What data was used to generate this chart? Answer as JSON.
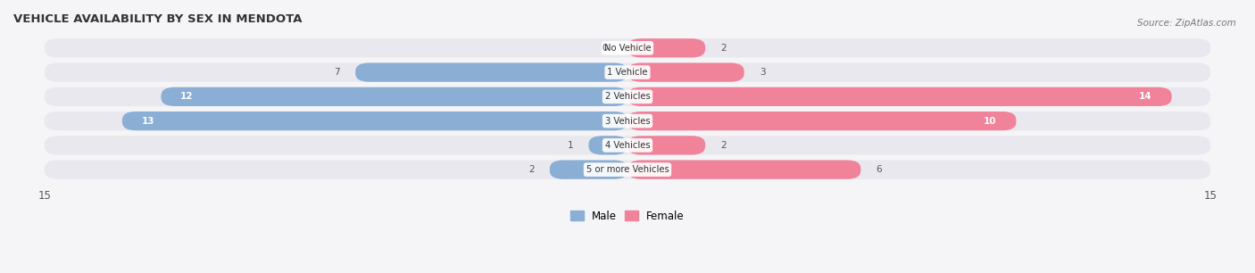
{
  "title": "VEHICLE AVAILABILITY BY SEX IN MENDOTA",
  "source": "Source: ZipAtlas.com",
  "categories": [
    "No Vehicle",
    "1 Vehicle",
    "2 Vehicles",
    "3 Vehicles",
    "4 Vehicles",
    "5 or more Vehicles"
  ],
  "male_values": [
    0,
    7,
    12,
    13,
    1,
    2
  ],
  "female_values": [
    2,
    3,
    14,
    10,
    2,
    6
  ],
  "male_color": "#8aaed4",
  "female_color": "#f0829a",
  "bar_bg_color": "#e8e8ee",
  "row_bg_color": "#f0f0f4",
  "xlim": 15,
  "legend_male": "Male",
  "legend_female": "Female",
  "fig_bg_color": "#f5f5f8"
}
